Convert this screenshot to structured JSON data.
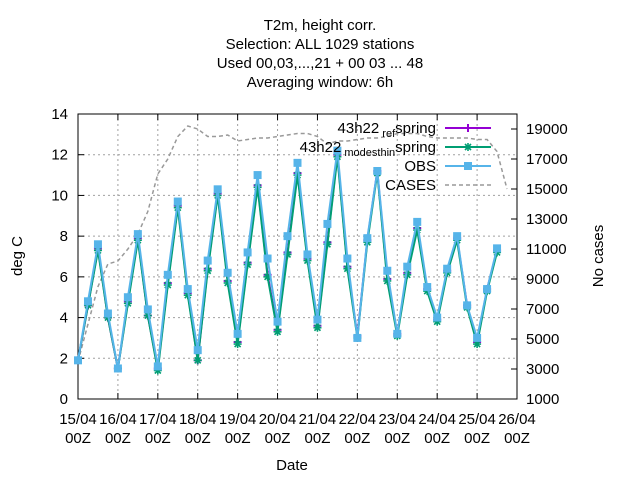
{
  "chart_data": {
    "type": "line",
    "title_lines": [
      "T2m, height corr.",
      "Selection: ALL    1029 stations",
      "Used  00,03,...,21  + 00 03 ... 48",
      "Averaging window:  6h"
    ],
    "xlabel": "Date",
    "ylabel": "deg C",
    "y2label": "No cases",
    "ylim": [
      0,
      14
    ],
    "y2lim": [
      1000,
      20000
    ],
    "y_ticks": [
      0,
      2,
      4,
      6,
      8,
      10,
      12,
      14
    ],
    "y2_ticks": [
      1000,
      3000,
      5000,
      7000,
      9000,
      11000,
      13000,
      15000,
      17000,
      19000
    ],
    "x_range_hours": [
      0,
      264
    ],
    "x_ticks": [
      {
        "h": 0,
        "l1": "15/04",
        "l2": "00Z"
      },
      {
        "h": 24,
        "l1": "16/04",
        "l2": "00Z"
      },
      {
        "h": 48,
        "l1": "17/04",
        "l2": "00Z"
      },
      {
        "h": 72,
        "l1": "18/04",
        "l2": "00Z"
      },
      {
        "h": 96,
        "l1": "19/04",
        "l2": "00Z"
      },
      {
        "h": 120,
        "l1": "20/04",
        "l2": "00Z"
      },
      {
        "h": 144,
        "l1": "21/04",
        "l2": "00Z"
      },
      {
        "h": 168,
        "l1": "22/04",
        "l2": "00Z"
      },
      {
        "h": 192,
        "l1": "23/04",
        "l2": "00Z"
      },
      {
        "h": 216,
        "l1": "24/04",
        "l2": "00Z"
      },
      {
        "h": 240,
        "l1": "25/04",
        "l2": "00Z"
      },
      {
        "h": 264,
        "l1": "26/04",
        "l2": "00Z"
      }
    ],
    "grid": true,
    "legend_position": "top-right",
    "x_hours": [
      0,
      6,
      12,
      18,
      24,
      30,
      36,
      42,
      48,
      54,
      60,
      66,
      72,
      78,
      84,
      90,
      96,
      102,
      108,
      114,
      120,
      126,
      132,
      138,
      144,
      150,
      156,
      162,
      168,
      174,
      180,
      186,
      192,
      198,
      204,
      210,
      216,
      222,
      228,
      234,
      240,
      246,
      252,
      258
    ],
    "series": [
      {
        "name": "43h22_ref_spring",
        "label_main": "43h22",
        "label_sub": "ref",
        "label_sub2": "spring",
        "color": "#9400d3",
        "marker": "plus",
        "axis": "y",
        "values": [
          1.9,
          4.6,
          7.4,
          4.0,
          1.5,
          4.8,
          7.9,
          4.1,
          1.5,
          5.7,
          9.5,
          5.2,
          1.9,
          6.4,
          10.1,
          5.8,
          2.8,
          6.7,
          10.5,
          6.1,
          3.4,
          7.2,
          11.1,
          6.9,
          3.6,
          7.7,
          12.0,
          6.5,
          3.1,
          7.8,
          11.2,
          5.9,
          3.2,
          6.2,
          8.4,
          5.4,
          3.9,
          6.3,
          7.9,
          4.6,
          2.8,
          5.4,
          7.3,
          null
        ]
      },
      {
        "name": "43h22_modesthin_spring",
        "label_main": "43h22",
        "label_sub": "modesthin",
        "label_sub2": "spring",
        "color": "#009e73",
        "marker": "star",
        "axis": "y",
        "values": [
          1.9,
          4.6,
          7.3,
          4.0,
          1.5,
          4.7,
          7.8,
          4.1,
          1.4,
          5.6,
          9.4,
          5.1,
          1.9,
          6.3,
          10.0,
          5.7,
          2.7,
          6.6,
          10.4,
          6.0,
          3.3,
          7.1,
          11.0,
          6.8,
          3.5,
          7.6,
          11.9,
          6.4,
          3.0,
          7.7,
          11.1,
          5.8,
          3.1,
          6.1,
          8.3,
          5.3,
          3.8,
          6.2,
          7.8,
          4.5,
          2.7,
          5.3,
          7.2,
          null
        ]
      },
      {
        "name": "OBS",
        "label_main": "OBS",
        "color": "#56b4e9",
        "marker": "square",
        "axis": "y",
        "values": [
          1.9,
          4.8,
          7.6,
          4.2,
          1.5,
          5.0,
          8.1,
          4.4,
          1.6,
          6.1,
          9.7,
          5.4,
          2.4,
          6.8,
          10.3,
          6.2,
          3.2,
          7.2,
          11.0,
          6.9,
          3.8,
          8.0,
          11.6,
          7.1,
          3.9,
          8.6,
          12.2,
          6.9,
          3.0,
          7.9,
          11.2,
          6.3,
          3.2,
          6.5,
          8.7,
          5.5,
          4.0,
          6.4,
          8.0,
          4.6,
          3.0,
          5.4,
          7.4,
          null
        ]
      },
      {
        "name": "CASES",
        "label_main": "CASES",
        "color": "#999999",
        "marker": "none",
        "dashed": true,
        "axis": "y2",
        "values": [
          3500,
          6000,
          8500,
          10000,
          10200,
          11000,
          12000,
          13500,
          16000,
          17000,
          18500,
          19200,
          19000,
          18500,
          18500,
          18600,
          18200,
          18300,
          18400,
          18400,
          18500,
          18600,
          18700,
          18700,
          18500,
          18000,
          18200,
          18200,
          18300,
          18400,
          18400,
          18500,
          18700,
          18700,
          18700,
          18500,
          18400,
          18400,
          18400,
          18400,
          18300,
          18300,
          17500,
          15000
        ]
      }
    ]
  }
}
